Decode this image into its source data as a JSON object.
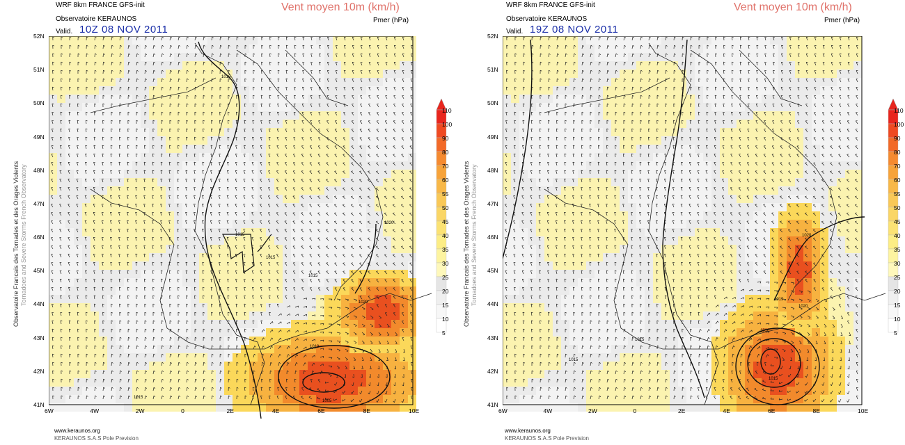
{
  "colors": {
    "title_blue": "#1b2fa8",
    "vent_red": "#e0726a"
  },
  "legend_levels": [
    "110",
    "100",
    "90",
    "80",
    "70",
    "60",
    "55",
    "50",
    "45",
    "40",
    "35",
    "30",
    "25",
    "20",
    "15",
    "10",
    "5"
  ],
  "legend_levels_right": [
    "110",
    "100",
    "90",
    "80",
    "70",
    "60",
    "55",
    "50",
    "45",
    "40",
    "35",
    "30",
    "25",
    "20",
    "15",
    "10",
    "5"
  ],
  "legend_colors": [
    "#e8261e",
    "#ef4a22",
    "#f26a28",
    "#f58a30",
    "#f7a33a",
    "#f8b848",
    "#f9c857",
    "#fad666",
    "#fbe274",
    "#fced86",
    "#fdf4a0",
    "#fef8bb",
    "#e5e5e5",
    "#efefef",
    "#f7f7f7",
    "#ffffff"
  ],
  "lat_labels": [
    "52N",
    "51N",
    "50N",
    "49N",
    "48N",
    "47N",
    "46N",
    "45N",
    "44N",
    "43N",
    "42N",
    "41N"
  ],
  "lon_labels": [
    "6W",
    "4W",
    "2W",
    "0",
    "2E",
    "4E",
    "6E",
    "8E",
    "10E"
  ],
  "panels": [
    {
      "model": "WRF 8km FRANCE   GFS-init",
      "observatory": "Observatoire KERAUNOS",
      "valid_label": "Valid.",
      "valid_time": "10Z 08 NOV 2011",
      "variable": "Vent moyen 10m (km/h)",
      "pressure_label": "Pmer (hPa)",
      "side_text_1": "Observatoire Francais des Tornades et des Orages Violents",
      "side_text_2": "Tornadoes and Severe Storms French Observatory",
      "footer_url": "www.keraunos.org",
      "footer_company": "KERAUNOS S.A.S Pole Prevision",
      "isobar_labels": [
        "1015",
        "1015",
        "1015",
        "1015",
        "1020",
        "1020",
        "1015",
        "1010",
        "1005"
      ]
    },
    {
      "model": "WRF 8km FRANCE   GFS-init",
      "observatory": "Observatoire KERAUNOS",
      "valid_label": "Valid.",
      "valid_time": "19Z 08 NOV 2011",
      "variable": "Vent moyen 10m (km/h)",
      "pressure_label": "Pmer (hPa)",
      "side_text_1": "Observatoire Francais des Tornades et des Orages Violents",
      "side_text_2": "Tornadoes and Severe Storms French Observatory",
      "footer_url": "www.keraunos.org",
      "footer_company": "KERAUNOS S.A.S Pole Prevision",
      "isobar_labels": [
        "1020",
        "1019",
        "1020",
        "1010",
        "1015",
        "1015",
        "1015"
      ]
    }
  ]
}
